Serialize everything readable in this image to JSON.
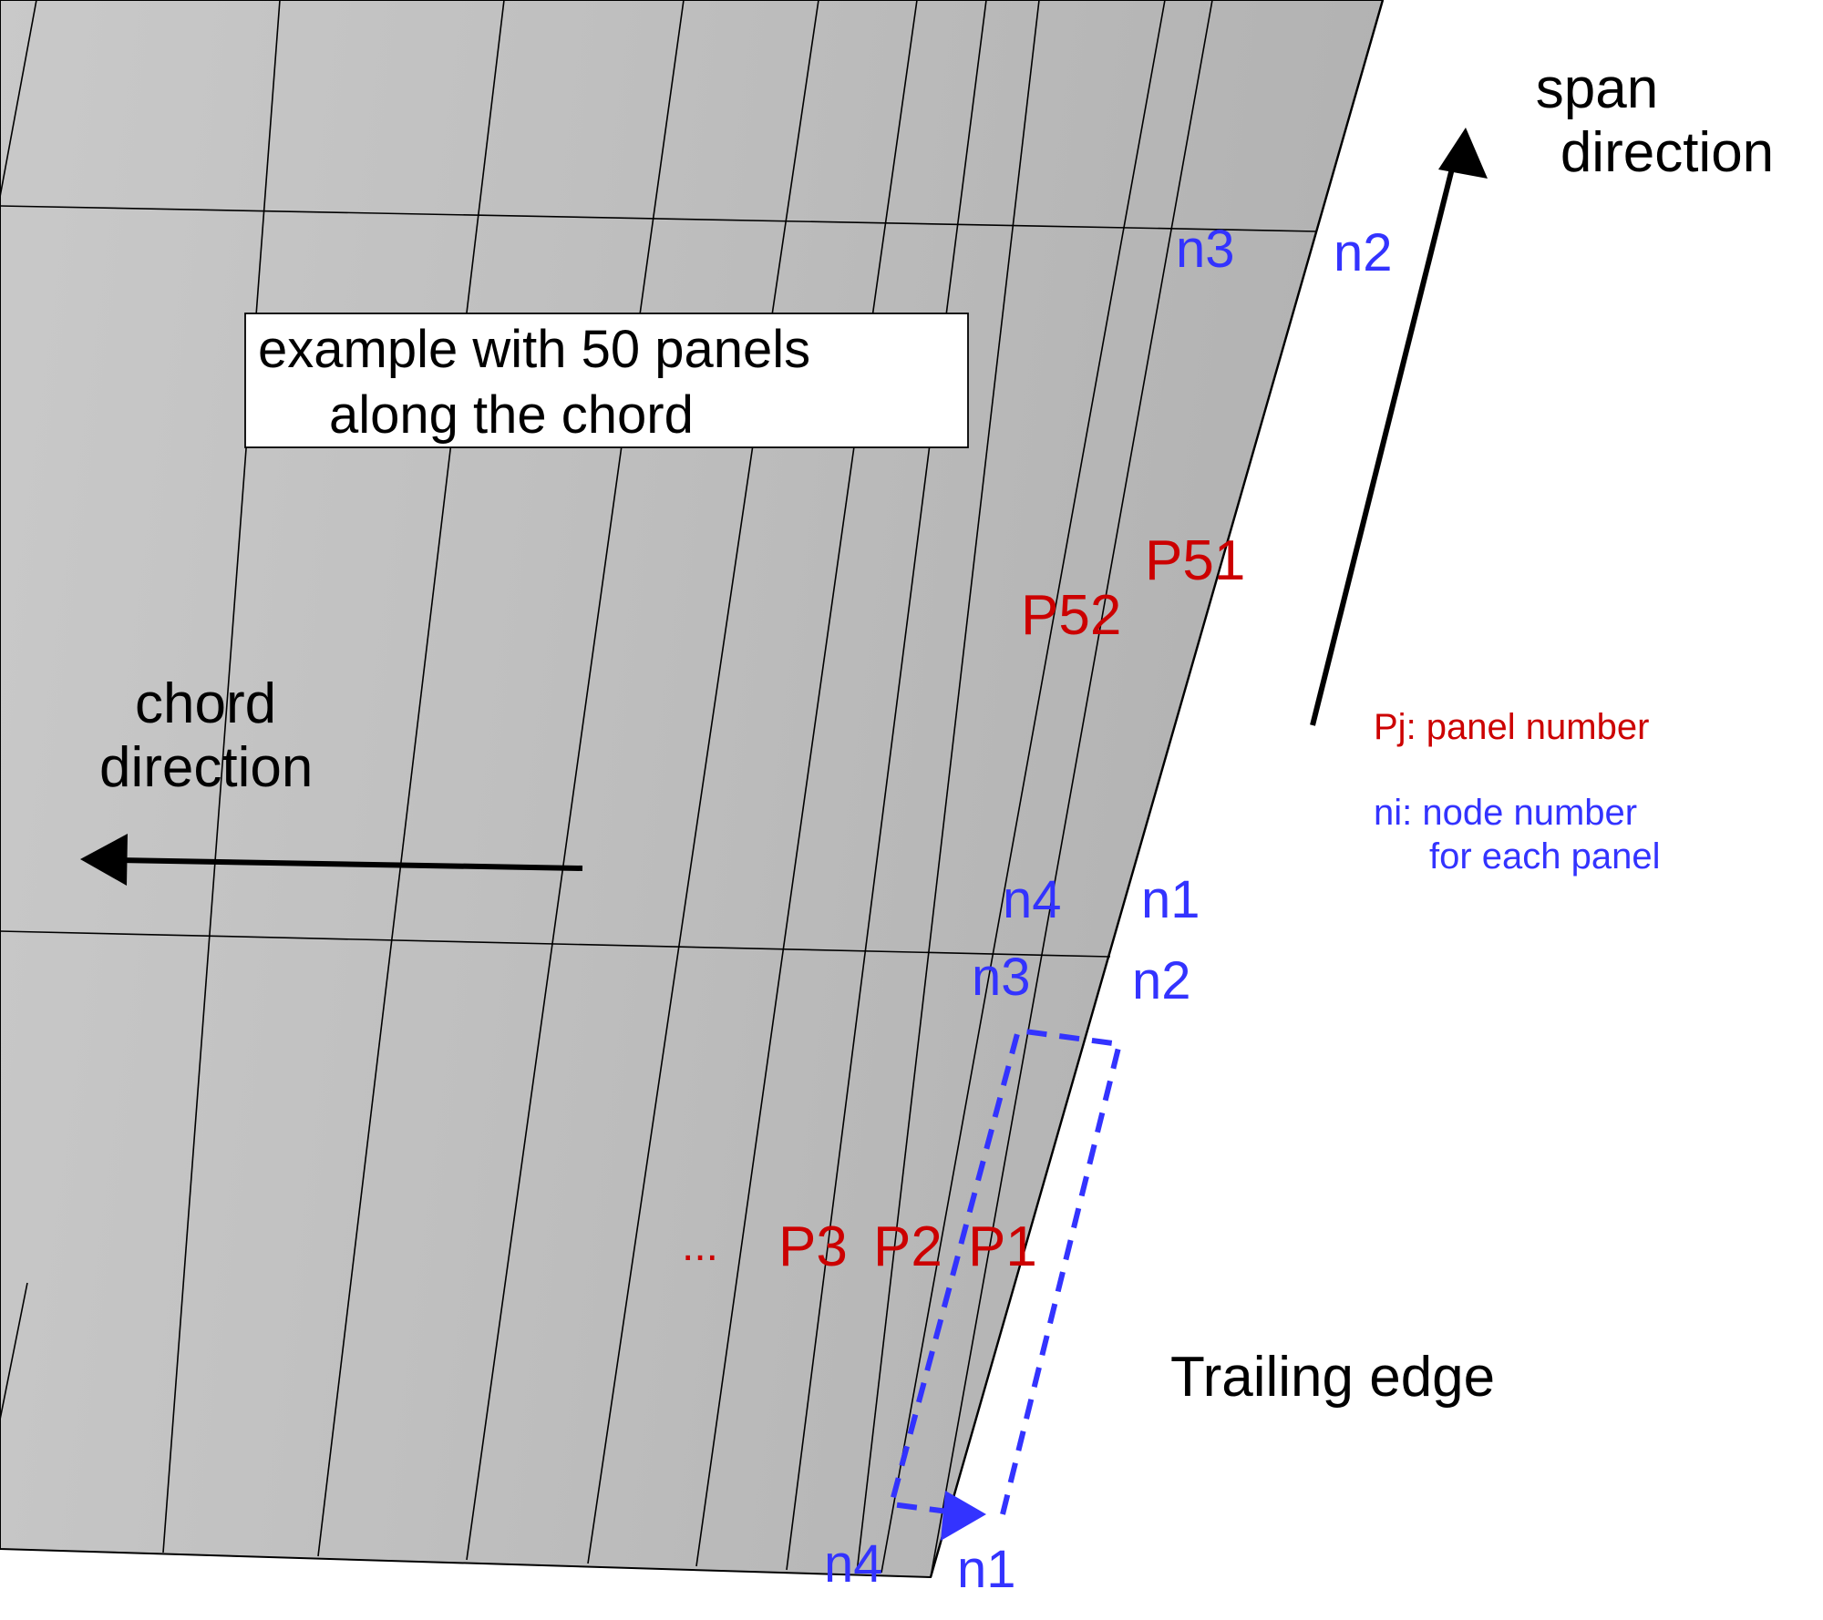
{
  "diagram": {
    "box_text": [
      "example with 50 panels",
      "along the chord"
    ],
    "span_direction": [
      "span",
      "direction"
    ],
    "chord_direction": [
      "chord",
      "direction"
    ],
    "trailing_edge": "Trailing edge",
    "legend": {
      "panel": "Pj: panel number",
      "node_line1": "ni: node number",
      "node_line2": "for each panel"
    },
    "panels": {
      "p51": "P51",
      "p52": "P52",
      "p1": "P1",
      "p2": "P2",
      "p3": "P3",
      "ellipsis": "..."
    },
    "nodes": {
      "top_n3": "n3",
      "top_n2": "n2",
      "mid_n4": "n4",
      "mid_n1": "n1",
      "low_n3": "n3",
      "low_n2": "n2",
      "bottom_n4": "n4",
      "bottom_n1": "n1"
    },
    "colors": {
      "panel_fill": "#c4c4c4",
      "panel_fill_dark": "#b4b4b4",
      "panel_number": "#cc0000",
      "node_number": "#3333ff",
      "arrow": "#000000"
    }
  }
}
